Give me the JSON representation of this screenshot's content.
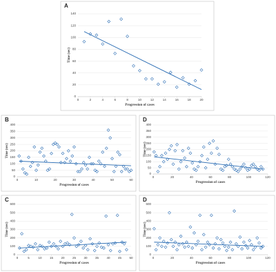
{
  "chart_data": [
    {
      "type": "scatter",
      "label": "A",
      "x_label": "Progression of cases",
      "y_label": "Time (sec)",
      "color": "#2e6fb5",
      "x": [
        1,
        2,
        3,
        4,
        5,
        6,
        7,
        8,
        9,
        10,
        11,
        12,
        13,
        14,
        15,
        16,
        17,
        18,
        19,
        20
      ],
      "y": [
        93,
        106,
        104,
        89,
        127,
        73,
        131,
        102,
        52,
        44,
        30,
        30,
        21,
        25,
        41,
        16,
        32,
        21,
        27,
        45
      ],
      "trendline": {
        "x": [
          1,
          20
        ],
        "y": [
          110,
          12
        ]
      },
      "xlim": [
        0,
        20
      ],
      "ylim": [
        0,
        140
      ],
      "xticks": [
        0,
        2,
        4,
        6,
        8,
        10,
        12,
        14,
        16,
        18,
        20
      ],
      "yticks": [
        0,
        20,
        40,
        60,
        80,
        100,
        120,
        140
      ],
      "grid": true
    },
    {
      "type": "scatter",
      "label": "B",
      "x_label": "Progression of cases",
      "y_label": "Time (sec)",
      "color": "#2e6fb5",
      "x": [
        1,
        2,
        3,
        4,
        5,
        6,
        7,
        8,
        9,
        10,
        11,
        12,
        13,
        14,
        15,
        16,
        17,
        18,
        19,
        20,
        21,
        22,
        23,
        24,
        25,
        26,
        27,
        28,
        29,
        30,
        31,
        32,
        33,
        34,
        35,
        36,
        37,
        38,
        39,
        40,
        41,
        42,
        43,
        44,
        45,
        46,
        47,
        48,
        49,
        50,
        51,
        52,
        53,
        54,
        55,
        56,
        57,
        58,
        59,
        60
      ],
      "y": [
        160,
        120,
        60,
        30,
        20,
        150,
        80,
        110,
        230,
        50,
        90,
        190,
        220,
        160,
        120,
        50,
        60,
        180,
        250,
        260,
        250,
        230,
        110,
        180,
        110,
        140,
        200,
        120,
        160,
        230,
        100,
        40,
        40,
        60,
        110,
        90,
        60,
        150,
        100,
        100,
        50,
        40,
        120,
        100,
        190,
        80,
        220,
        360,
        300,
        140,
        40,
        80,
        190,
        170,
        40,
        80,
        60,
        60,
        40,
        50
      ],
      "trendline": {
        "x": [
          1,
          60
        ],
        "y": [
          120,
          85
        ]
      },
      "xlim": [
        0,
        60
      ],
      "ylim": [
        0,
        400
      ],
      "xticks": [
        0,
        10,
        20,
        30,
        40,
        50,
        60
      ],
      "yticks": [
        0,
        50,
        100,
        150,
        200,
        250,
        300,
        350,
        400
      ],
      "grid": true
    },
    {
      "type": "scatter",
      "label": "D",
      "x_label": "Progression of cases",
      "y_label": "Time (sec)",
      "color": "#2e6fb5",
      "x": [
        1,
        3,
        5,
        7,
        9,
        11,
        13,
        15,
        17,
        19,
        21,
        23,
        25,
        27,
        29,
        31,
        33,
        35,
        37,
        39,
        41,
        43,
        45,
        47,
        49,
        51,
        53,
        55,
        57,
        59,
        61,
        63,
        65,
        67,
        69,
        71,
        73,
        75,
        77,
        79,
        81,
        83,
        85,
        87,
        89,
        91,
        93,
        95,
        97,
        99,
        101,
        103,
        105,
        107,
        109,
        111,
        113,
        115
      ],
      "y": [
        180,
        150,
        20,
        60,
        150,
        100,
        170,
        120,
        200,
        230,
        80,
        190,
        240,
        40,
        100,
        190,
        130,
        60,
        210,
        170,
        90,
        40,
        30,
        60,
        100,
        150,
        220,
        50,
        120,
        250,
        170,
        270,
        80,
        210,
        160,
        40,
        30,
        60,
        70,
        120,
        80,
        60,
        40,
        30,
        20,
        40,
        60,
        80,
        50,
        30,
        40,
        70,
        80,
        60,
        40,
        30,
        60,
        40
      ],
      "trendline": {
        "x": [
          1,
          115
        ],
        "y": [
          140,
          40
        ]
      },
      "xlim": [
        0,
        120
      ],
      "ylim": [
        0,
        400
      ],
      "xticks": [
        0,
        20,
        40,
        60,
        80,
        100,
        120
      ],
      "yticks": [
        0,
        50,
        100,
        150,
        200,
        250,
        300,
        350,
        400
      ],
      "grid": true
    },
    {
      "type": "scatter",
      "label": "C",
      "x_label": "Progression of cases",
      "y_label": "Time (sec)",
      "color": "#2e6fb5",
      "x": [
        1,
        2,
        3,
        4,
        5,
        6,
        7,
        8,
        9,
        10,
        11,
        12,
        13,
        14,
        15,
        16,
        17,
        18,
        19,
        20,
        21,
        22,
        23,
        24,
        25,
        26,
        27,
        28,
        29,
        30,
        31,
        32,
        33,
        34,
        35,
        36,
        37,
        38,
        39,
        40,
        41,
        42,
        43,
        44,
        45,
        46,
        47,
        48
      ],
      "y": [
        80,
        250,
        40,
        60,
        110,
        100,
        90,
        130,
        60,
        110,
        100,
        70,
        80,
        150,
        100,
        130,
        100,
        70,
        160,
        100,
        130,
        140,
        120,
        480,
        200,
        100,
        120,
        160,
        80,
        110,
        60,
        190,
        130,
        50,
        100,
        140,
        90,
        80,
        460,
        120,
        50,
        130,
        140,
        470,
        40,
        150,
        130,
        60
      ],
      "trendline": {
        "x": [
          1,
          48
        ],
        "y": [
          80,
          150
        ]
      },
      "xlim": [
        0,
        50
      ],
      "ylim": [
        0,
        600
      ],
      "xticks": [
        0,
        5,
        10,
        15,
        20,
        25,
        30,
        35,
        40,
        45,
        50
      ],
      "yticks": [
        0,
        100,
        200,
        300,
        400,
        500,
        600
      ],
      "grid": true
    },
    {
      "type": "scatter",
      "label": "D",
      "x_label": "Progression of cases",
      "y_label": "Time (sec)",
      "color": "#2e6fb5",
      "x": [
        1,
        3,
        5,
        7,
        9,
        11,
        13,
        15,
        17,
        19,
        21,
        23,
        25,
        27,
        29,
        31,
        33,
        35,
        37,
        39,
        41,
        43,
        45,
        47,
        49,
        51,
        53,
        55,
        57,
        59,
        61,
        63,
        65,
        67,
        69,
        71,
        73,
        75,
        77,
        79,
        81,
        83,
        85,
        87,
        89,
        91,
        93,
        95,
        97,
        99,
        101,
        103,
        105,
        107,
        109,
        111,
        113,
        115
      ],
      "y": [
        310,
        60,
        120,
        200,
        100,
        160,
        90,
        140,
        500,
        180,
        100,
        150,
        60,
        120,
        220,
        130,
        90,
        150,
        100,
        330,
        80,
        260,
        120,
        160,
        470,
        60,
        240,
        90,
        150,
        120,
        470,
        80,
        130,
        200,
        70,
        180,
        140,
        100,
        50,
        90,
        150,
        60,
        520,
        130,
        100,
        210,
        70,
        150,
        110,
        80,
        170,
        120,
        60,
        90,
        200,
        140,
        80,
        100
      ],
      "trendline": {
        "x": [
          1,
          115
        ],
        "y": [
          150,
          100
        ]
      },
      "xlim": [
        0,
        120
      ],
      "ylim": [
        0,
        600
      ],
      "xticks": [
        0,
        20,
        40,
        60,
        80,
        100,
        120
      ],
      "yticks": [
        0,
        100,
        200,
        300,
        400,
        500,
        600
      ],
      "grid": true
    }
  ]
}
